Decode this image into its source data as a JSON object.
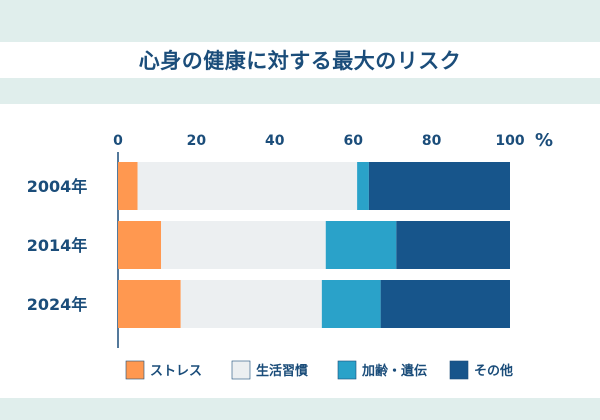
{
  "chart_data": {
    "type": "bar",
    "orientation": "horizontal",
    "stacked": true,
    "title": "心身の健康に対する最大のリスク",
    "unit": "%",
    "categories": [
      "2004年",
      "2014年",
      "2024年"
    ],
    "series": [
      {
        "name": "ストレス",
        "values": [
          5,
          11,
          16
        ],
        "color": "#ff9850"
      },
      {
        "name": "生活習慣",
        "values": [
          56,
          42,
          36
        ],
        "color": "#eceff1"
      },
      {
        "name": "加齢・遺伝",
        "values": [
          3,
          18,
          15
        ],
        "color": "#2aa2c9"
      },
      {
        "name": "その他",
        "values": [
          36,
          29,
          33
        ],
        "color": "#17558b"
      }
    ],
    "xlim": [
      0,
      100
    ],
    "xticks": [
      0,
      20,
      40,
      60,
      80,
      100
    ],
    "legend_position": "bottom"
  }
}
